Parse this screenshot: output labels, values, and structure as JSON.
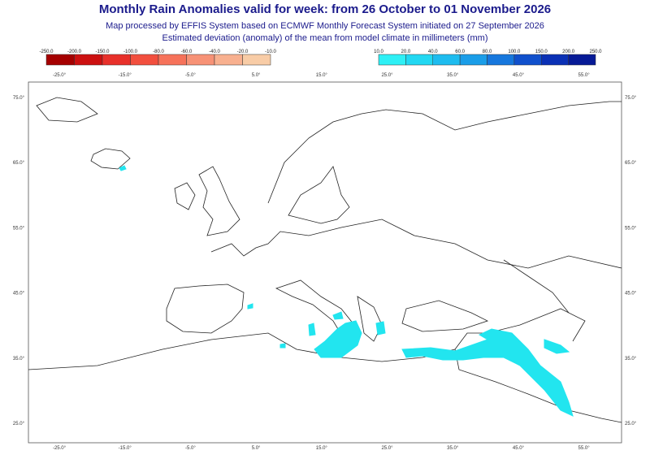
{
  "title": "Monthly Rain Anomalies valid for week: from 26 October to 01 November 2026",
  "subtitle": [
    "Map processed by EFFIS System based on ECMWF Monthly Forecast System initiated on 27 September 2026",
    "Estimated deviation (anomaly) of the mean from model climate in millimeters (mm)"
  ],
  "legend": {
    "negative": [
      "-250.0",
      "-200.0",
      "-150.0",
      "-100.0",
      "-80.0",
      "-60.0",
      "-40.0",
      "-20.0",
      "-10.0"
    ],
    "positive": [
      "10.0",
      "20.0",
      "40.0",
      "60.0",
      "80.0",
      "100.0",
      "150.0",
      "200.0",
      "250.0"
    ]
  },
  "longitudes": [
    "-25.0°",
    "-15.0°",
    "-5.0°",
    "5.0°",
    "15.0°",
    "25.0°",
    "35.0°",
    "45.0°",
    "55.0°"
  ],
  "latitudes": [
    "75.0°",
    "65.0°",
    "55.0°",
    "45.0°",
    "35.0°",
    "25.0°"
  ]
}
